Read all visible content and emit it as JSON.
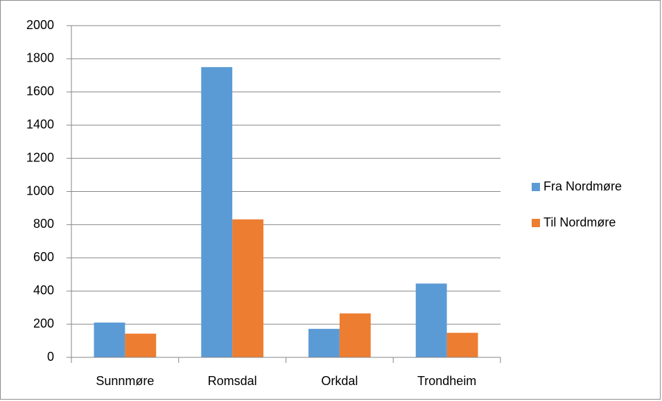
{
  "chart_data": {
    "type": "bar",
    "categories": [
      "Sunnmøre",
      "Romsdal",
      "Orkdal",
      "Trondheim"
    ],
    "series": [
      {
        "name": "Fra Nordmøre",
        "color": "#5b9bd5",
        "values": [
          210,
          1750,
          172,
          445
        ]
      },
      {
        "name": "Til Nordmøre",
        "color": "#ed7d31",
        "values": [
          143,
          832,
          265,
          148
        ]
      }
    ],
    "ylim": [
      0,
      2000
    ],
    "yticks": [
      0,
      200,
      400,
      600,
      800,
      1000,
      1200,
      1400,
      1600,
      1800,
      2000
    ],
    "grid": true,
    "legend": "right"
  }
}
